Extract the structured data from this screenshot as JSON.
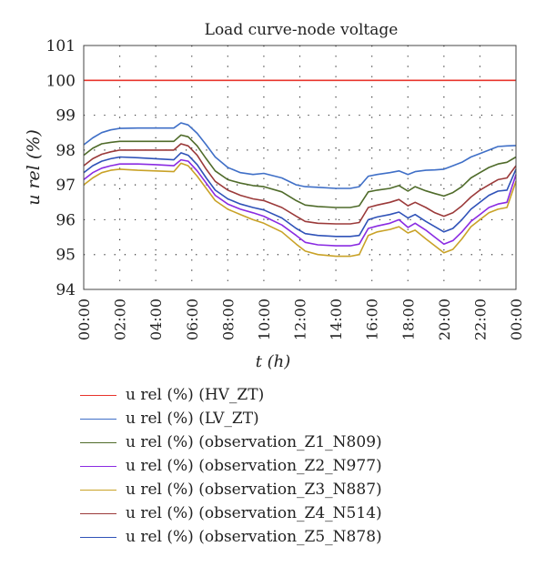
{
  "chart_data": {
    "type": "line",
    "title": "Load curve-node voltage",
    "xlabel": "t (h)",
    "ylabel": "u rel (%)",
    "ylim": [
      94,
      101
    ],
    "xlim": [
      0,
      24
    ],
    "yticks": [
      "94",
      "95",
      "96",
      "97",
      "98",
      "99",
      "100",
      "101"
    ],
    "xticks": [
      "00:00",
      "02:00",
      "04:00",
      "06:00",
      "08:00",
      "10:00",
      "12:00",
      "14:00",
      "16:00",
      "18:00",
      "20:00",
      "22:00",
      "00:00"
    ],
    "grid": "dotted",
    "legend_position": "bottom",
    "x": [
      0,
      0.5,
      1,
      1.5,
      2,
      3,
      4,
      5,
      5.4,
      5.8,
      6.3,
      6.8,
      7.3,
      8,
      8.7,
      9.4,
      10,
      11,
      11.8,
      12.3,
      13,
      14,
      14.8,
      15.3,
      15.8,
      16.3,
      17,
      17.5,
      18,
      18.4,
      19,
      19.5,
      20,
      20.5,
      21,
      21.5,
      22,
      22.5,
      23,
      23.5,
      24
    ],
    "series": [
      {
        "name": "u rel (%) (HV_ZT)",
        "color": "#e8342c",
        "values": [
          100,
          100,
          100,
          100,
          100,
          100,
          100,
          100,
          100,
          100,
          100,
          100,
          100,
          100,
          100,
          100,
          100,
          100,
          100,
          100,
          100,
          100,
          100,
          100,
          100,
          100,
          100,
          100,
          100,
          100,
          100,
          100,
          100,
          100,
          100,
          100,
          100,
          100,
          100,
          100,
          100
        ]
      },
      {
        "name": "u rel (%) (LV_ZT)",
        "color": "#3f6fc7",
        "values": [
          98.15,
          98.35,
          98.5,
          98.58,
          98.62,
          98.63,
          98.63,
          98.63,
          98.78,
          98.72,
          98.48,
          98.15,
          97.8,
          97.5,
          97.35,
          97.3,
          97.33,
          97.2,
          97.0,
          96.95,
          96.93,
          96.9,
          96.9,
          96.95,
          97.25,
          97.3,
          97.35,
          97.4,
          97.3,
          97.38,
          97.42,
          97.43,
          97.45,
          97.55,
          97.65,
          97.8,
          97.9,
          98.0,
          98.1,
          98.12,
          98.13
        ]
      },
      {
        "name": "u rel (%) (observation_Z1_N809)",
        "color": "#4f6b2a",
        "values": [
          97.85,
          98.05,
          98.18,
          98.22,
          98.25,
          98.25,
          98.25,
          98.25,
          98.43,
          98.38,
          98.12,
          97.75,
          97.4,
          97.15,
          97.05,
          96.98,
          96.95,
          96.8,
          96.55,
          96.42,
          96.38,
          96.35,
          96.35,
          96.4,
          96.8,
          96.85,
          96.9,
          96.98,
          96.82,
          96.95,
          96.83,
          96.75,
          96.68,
          96.78,
          96.95,
          97.2,
          97.35,
          97.5,
          97.6,
          97.65,
          97.8
        ]
      },
      {
        "name": "u rel (%) (observation_Z2_N977)",
        "color": "#8a2be2",
        "values": [
          97.15,
          97.35,
          97.48,
          97.55,
          97.6,
          97.6,
          97.58,
          97.55,
          97.72,
          97.68,
          97.4,
          97.05,
          96.7,
          96.45,
          96.3,
          96.2,
          96.1,
          95.85,
          95.55,
          95.35,
          95.28,
          95.25,
          95.25,
          95.3,
          95.75,
          95.82,
          95.9,
          96.0,
          95.78,
          95.9,
          95.7,
          95.5,
          95.3,
          95.4,
          95.65,
          95.95,
          96.15,
          96.35,
          96.45,
          96.5,
          97.3
        ]
      },
      {
        "name": "u rel (%) (observation_Z3_N887)",
        "color": "#c9a227",
        "values": [
          97.0,
          97.2,
          97.35,
          97.42,
          97.45,
          97.42,
          97.4,
          97.38,
          97.62,
          97.55,
          97.25,
          96.9,
          96.55,
          96.3,
          96.15,
          96.0,
          95.9,
          95.65,
          95.3,
          95.1,
          95.0,
          94.95,
          94.95,
          95.0,
          95.55,
          95.65,
          95.72,
          95.8,
          95.62,
          95.7,
          95.45,
          95.25,
          95.05,
          95.15,
          95.45,
          95.8,
          96.0,
          96.2,
          96.3,
          96.35,
          97.1
        ]
      },
      {
        "name": "u rel (%) (observation_Z4_N514)",
        "color": "#9b3a3a",
        "values": [
          97.55,
          97.75,
          97.88,
          97.95,
          98.0,
          98.0,
          98.0,
          98.0,
          98.18,
          98.12,
          97.85,
          97.45,
          97.1,
          96.85,
          96.7,
          96.6,
          96.55,
          96.35,
          96.1,
          95.95,
          95.9,
          95.88,
          95.88,
          95.92,
          96.35,
          96.42,
          96.5,
          96.58,
          96.4,
          96.5,
          96.35,
          96.2,
          96.1,
          96.2,
          96.4,
          96.65,
          96.85,
          97.0,
          97.15,
          97.2,
          97.55
        ]
      },
      {
        "name": "u rel (%) (observation_Z5_N878)",
        "color": "#2f52b8",
        "values": [
          97.35,
          97.55,
          97.68,
          97.75,
          97.8,
          97.78,
          97.75,
          97.72,
          97.92,
          97.85,
          97.58,
          97.2,
          96.85,
          96.6,
          96.45,
          96.35,
          96.28,
          96.05,
          95.75,
          95.6,
          95.55,
          95.52,
          95.52,
          95.55,
          96.0,
          96.08,
          96.15,
          96.22,
          96.05,
          96.15,
          95.95,
          95.8,
          95.65,
          95.75,
          96.0,
          96.3,
          96.5,
          96.7,
          96.82,
          96.85,
          97.45
        ]
      }
    ]
  }
}
